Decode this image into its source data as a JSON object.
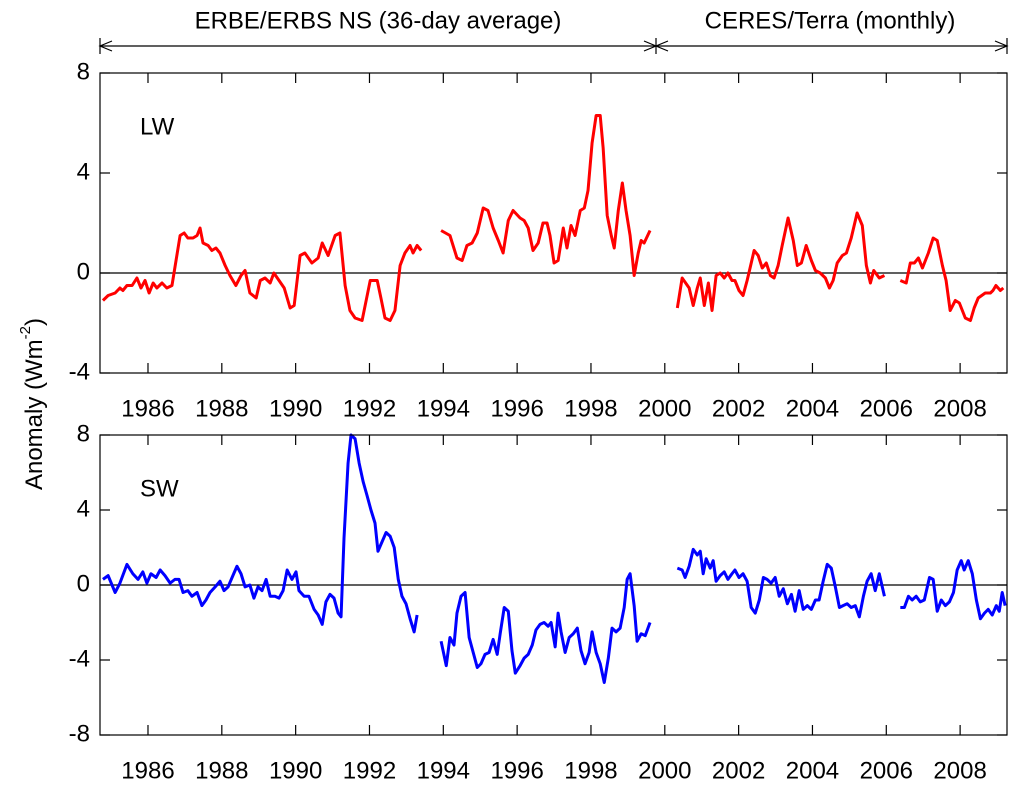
{
  "header": [
    "ERBE/ERBS NS (36-day average)",
    "CERES/Terra (monthly)"
  ],
  "ylabel": [
    "Anomaly (Wm",
    "-2",
    ")"
  ],
  "chart_data": [
    {
      "type": "line",
      "xlim": [
        1984.7,
        2009.27
      ],
      "ylim": [
        -4,
        8
      ],
      "xticks": [
        1986,
        1988,
        1990,
        1992,
        1994,
        1996,
        1998,
        2000,
        2002,
        2004,
        2006,
        2008
      ],
      "yticks": [
        -4,
        0,
        4,
        8
      ],
      "zero_line": true,
      "x": [
        1984.78,
        1984.92,
        1985.11,
        1985.24,
        1985.32,
        1985.43,
        1985.57,
        1985.7,
        1985.81,
        1985.92,
        1986.03,
        1986.14,
        1986.24,
        1986.38,
        1986.51,
        1986.65,
        1986.76,
        1986.87,
        1986.98,
        1987.08,
        1987.22,
        1987.33,
        1987.41,
        1987.49,
        1987.63,
        1987.73,
        1987.84,
        1987.95,
        1988.09,
        1988.22,
        1988.38,
        1988.52,
        1988.63,
        1988.76,
        1988.93,
        1989.04,
        1989.17,
        1989.31,
        1989.41,
        1989.55,
        1989.69,
        1989.85,
        1989.96,
        1990.12,
        1990.25,
        1990.44,
        1990.61,
        1990.72,
        1990.88,
        1991.07,
        1991.2,
        1991.34,
        1991.47,
        1991.61,
        1991.8,
        1992.02,
        1992.21,
        1992.31,
        1992.42,
        1992.56,
        1992.69,
        1992.83,
        1992.96,
        1993.1,
        1993.18,
        1993.29,
        1993.4,
        1993.67,
        1993.94,
        1994.18,
        1994.37,
        1994.51,
        1994.64,
        1994.78,
        1994.92,
        1995.08,
        1995.21,
        1995.35,
        1995.49,
        1995.62,
        1995.76,
        1995.89,
        1996.08,
        1996.19,
        1996.3,
        1996.43,
        1996.57,
        1996.7,
        1996.81,
        1996.89,
        1997.0,
        1997.11,
        1997.25,
        1997.35,
        1997.46,
        1997.57,
        1997.71,
        1997.82,
        1997.92,
        1998.03,
        1998.14,
        1998.25,
        1998.33,
        1998.44,
        1998.55,
        1998.63,
        1998.74,
        1998.85,
        1998.95,
        1999.06,
        1999.17,
        1999.28,
        1999.36,
        1999.44,
        1999.6,
        1999.97,
        2000.34,
        2000.47,
        2000.66,
        2000.77,
        2000.88,
        2000.96,
        2001.07,
        2001.18,
        2001.28,
        2001.39,
        2001.5,
        2001.61,
        2001.71,
        2001.82,
        2001.9,
        2002.01,
        2002.12,
        2002.23,
        2002.31,
        2002.42,
        2002.53,
        2002.64,
        2002.75,
        2002.86,
        2002.96,
        2003.07,
        2003.18,
        2003.34,
        2003.48,
        2003.59,
        2003.7,
        2003.83,
        2003.97,
        2004.08,
        2004.21,
        2004.35,
        2004.46,
        2004.56,
        2004.67,
        2004.81,
        2004.92,
        2005.05,
        2005.21,
        2005.35,
        2005.46,
        2005.57,
        2005.66,
        2005.81,
        2005.95,
        2006.16,
        2006.38,
        2006.54,
        2006.65,
        2006.76,
        2006.87,
        2006.98,
        2007.14,
        2007.27,
        2007.38,
        2007.52,
        2007.62,
        2007.73,
        2007.87,
        2007.98,
        2008.14,
        2008.28,
        2008.38,
        2008.49,
        2008.68,
        2008.82,
        2008.89,
        2008.97,
        2009.09,
        2009.17
      ],
      "series": [
        {
          "name": "LW",
          "color": "#ff0000",
          "values": [
            -1.1,
            -0.9,
            -0.8,
            -0.6,
            -0.7,
            -0.5,
            -0.5,
            -0.2,
            -0.6,
            -0.3,
            -0.8,
            -0.4,
            -0.6,
            -0.4,
            -0.6,
            -0.5,
            0.5,
            1.5,
            1.6,
            1.4,
            1.4,
            1.5,
            1.8,
            1.2,
            1.1,
            0.9,
            1.0,
            0.8,
            0.3,
            -0.1,
            -0.5,
            -0.1,
            0.1,
            -0.8,
            -1.0,
            -0.3,
            -0.2,
            -0.4,
            0.0,
            -0.3,
            -0.6,
            -1.4,
            -1.3,
            0.7,
            0.8,
            0.4,
            0.6,
            1.2,
            0.7,
            1.5,
            1.6,
            -0.5,
            -1.5,
            -1.8,
            -1.9,
            -0.3,
            -0.3,
            -1.0,
            -1.8,
            -1.9,
            -1.5,
            0.3,
            0.8,
            1.1,
            0.8,
            1.1,
            0.9,
            null,
            1.7,
            1.5,
            0.6,
            0.5,
            1.1,
            1.2,
            1.6,
            2.6,
            2.5,
            1.8,
            1.3,
            0.8,
            2.1,
            2.5,
            2.2,
            2.1,
            1.8,
            0.9,
            1.2,
            2.0,
            2.0,
            1.5,
            0.4,
            0.5,
            1.8,
            1.0,
            1.9,
            1.5,
            2.5,
            2.6,
            3.3,
            5.2,
            6.3,
            6.3,
            5.0,
            2.3,
            1.5,
            1.0,
            2.5,
            3.6,
            2.5,
            1.5,
            -0.1,
            0.8,
            1.3,
            1.2,
            1.7,
            null,
            -1.4,
            -0.2,
            -0.6,
            -1.3,
            -0.6,
            -0.2,
            -1.3,
            -0.4,
            -1.5,
            -0.1,
            0.0,
            -0.2,
            0.0,
            -0.3,
            -0.3,
            -0.7,
            -0.9,
            -0.3,
            0.2,
            0.9,
            0.7,
            0.2,
            0.4,
            -0.1,
            -0.2,
            0.3,
            1.1,
            2.2,
            1.3,
            0.3,
            0.4,
            1.1,
            0.5,
            0.1,
            0.0,
            -0.2,
            -0.6,
            -0.3,
            0.4,
            0.7,
            0.8,
            1.4,
            2.4,
            1.9,
            0.3,
            -0.4,
            0.1,
            -0.2,
            -0.1,
            null,
            -0.3,
            -0.4,
            0.4,
            0.4,
            0.6,
            0.2,
            0.8,
            1.4,
            1.3,
            0.3,
            -0.3,
            -1.5,
            -1.1,
            -1.2,
            -1.8,
            -1.9,
            -1.4,
            -1.0,
            -0.8,
            -0.8,
            -0.7,
            -0.5,
            -0.7,
            -0.6
          ]
        }
      ]
    },
    {
      "type": "line",
      "xlim": [
        1984.7,
        2009.27
      ],
      "ylim": [
        -8,
        8
      ],
      "xticks": [
        1986,
        1988,
        1990,
        1992,
        1994,
        1996,
        1998,
        2000,
        2002,
        2004,
        2006,
        2008
      ],
      "yticks": [
        -8,
        -4,
        0,
        4,
        8
      ],
      "zero_line": true,
      "x": [
        1984.78,
        1984.92,
        1985.11,
        1985.24,
        1985.43,
        1985.59,
        1985.73,
        1985.86,
        1985.97,
        1986.08,
        1986.22,
        1986.33,
        1986.46,
        1986.6,
        1986.73,
        1986.84,
        1986.95,
        1987.08,
        1987.19,
        1987.33,
        1987.46,
        1987.57,
        1987.68,
        1987.82,
        1987.95,
        1988.06,
        1988.17,
        1988.3,
        1988.41,
        1988.52,
        1988.63,
        1988.76,
        1988.87,
        1988.98,
        1989.09,
        1989.2,
        1989.31,
        1989.44,
        1989.55,
        1989.66,
        1989.77,
        1989.9,
        1990.01,
        1990.09,
        1990.23,
        1990.36,
        1990.5,
        1990.61,
        1990.72,
        1990.82,
        1990.93,
        1991.04,
        1991.15,
        1991.23,
        1991.31,
        1991.42,
        1991.5,
        1991.61,
        1991.72,
        1991.83,
        1991.93,
        1992.04,
        1992.15,
        1992.23,
        1992.34,
        1992.45,
        1992.56,
        1992.67,
        1992.78,
        1992.88,
        1992.99,
        1993.1,
        1993.21,
        1993.29,
        1993.62,
        1993.94,
        1994.08,
        1994.18,
        1994.29,
        1994.37,
        1994.48,
        1994.59,
        1994.7,
        1994.81,
        1994.92,
        1995.02,
        1995.13,
        1995.24,
        1995.35,
        1995.46,
        1995.54,
        1995.65,
        1995.76,
        1995.86,
        1995.95,
        1996.08,
        1996.19,
        1996.3,
        1996.41,
        1996.51,
        1996.62,
        1996.73,
        1996.84,
        1996.92,
        1997.03,
        1997.11,
        1997.19,
        1997.3,
        1997.41,
        1997.52,
        1997.63,
        1997.73,
        1997.84,
        1997.95,
        1998.03,
        1998.14,
        1998.25,
        1998.36,
        1998.47,
        1998.57,
        1998.68,
        1998.79,
        1998.9,
        1998.98,
        1999.06,
        1999.17,
        1999.25,
        1999.36,
        1999.47,
        1999.6,
        1999.97,
        2000.34,
        2000.47,
        2000.55,
        2000.66,
        2000.77,
        2000.88,
        2000.96,
        2001.04,
        2001.12,
        2001.23,
        2001.31,
        2001.39,
        2001.5,
        2001.61,
        2001.71,
        2001.82,
        2001.9,
        2002.01,
        2002.12,
        2002.23,
        2002.34,
        2002.45,
        2002.56,
        2002.67,
        2002.77,
        2002.88,
        2002.99,
        2003.1,
        2003.21,
        2003.32,
        2003.43,
        2003.53,
        2003.64,
        2003.75,
        2003.86,
        2003.97,
        2004.08,
        2004.18,
        2004.29,
        2004.4,
        2004.51,
        2004.62,
        2004.73,
        2004.83,
        2004.94,
        2005.05,
        2005.16,
        2005.27,
        2005.38,
        2005.48,
        2005.59,
        2005.7,
        2005.81,
        2005.95,
        2006.16,
        2006.38,
        2006.49,
        2006.6,
        2006.7,
        2006.81,
        2006.92,
        2007.03,
        2007.17,
        2007.27,
        2007.38,
        2007.49,
        2007.6,
        2007.71,
        2007.82,
        2007.92,
        2008.03,
        2008.11,
        2008.22,
        2008.33,
        2008.44,
        2008.55,
        2008.66,
        2008.76,
        2008.87,
        2008.98,
        2009.06,
        2009.14,
        2009.22
      ],
      "series": [
        {
          "name": "SW",
          "color": "#0000ff",
          "values": [
            0.3,
            0.5,
            -0.4,
            0.1,
            1.1,
            0.6,
            0.3,
            0.7,
            0.1,
            0.6,
            0.4,
            0.8,
            0.5,
            0.1,
            0.3,
            0.3,
            -0.4,
            -0.3,
            -0.6,
            -0.4,
            -1.1,
            -0.8,
            -0.4,
            -0.1,
            0.2,
            -0.3,
            -0.1,
            0.5,
            1.0,
            0.6,
            -0.1,
            0.0,
            -0.7,
            -0.1,
            -0.3,
            0.3,
            -0.6,
            -0.6,
            -0.7,
            -0.3,
            0.8,
            0.3,
            0.7,
            -0.3,
            -0.6,
            -0.6,
            -1.3,
            -1.6,
            -2.1,
            -0.9,
            -0.5,
            -0.7,
            -1.5,
            -1.7,
            2.5,
            6.5,
            8.0,
            7.8,
            6.5,
            5.5,
            4.8,
            4.0,
            3.3,
            1.8,
            2.3,
            2.8,
            2.6,
            2.0,
            0.3,
            -0.6,
            -1.0,
            -1.8,
            -2.5,
            -1.6,
            null,
            -3.0,
            -4.3,
            -2.8,
            -3.2,
            -1.5,
            -0.6,
            -0.4,
            -2.8,
            -3.6,
            -4.4,
            -4.2,
            -3.7,
            -3.6,
            -2.9,
            -3.7,
            -2.6,
            -1.2,
            -1.4,
            -3.5,
            -4.7,
            -4.3,
            -3.9,
            -3.7,
            -3.2,
            -2.4,
            -2.1,
            -2.0,
            -2.2,
            -2.0,
            -3.3,
            -1.5,
            -2.5,
            -3.6,
            -2.8,
            -2.6,
            -2.3,
            -3.5,
            -4.2,
            -3.6,
            -2.5,
            -3.6,
            -4.2,
            -5.2,
            -3.9,
            -2.3,
            -2.5,
            -2.3,
            -1.2,
            0.3,
            0.6,
            -1.1,
            -3.0,
            -2.6,
            -2.7,
            -2.0,
            null,
            0.9,
            0.8,
            0.4,
            1.0,
            1.9,
            1.6,
            1.8,
            0.6,
            1.4,
            0.9,
            1.3,
            0.2,
            0.5,
            0.7,
            0.3,
            0.6,
            0.8,
            0.4,
            0.6,
            0.2,
            -1.2,
            -1.5,
            -0.8,
            0.4,
            0.3,
            0.1,
            0.4,
            -0.6,
            -0.2,
            -1.0,
            -0.5,
            -1.4,
            -0.3,
            -1.3,
            -1.1,
            -1.3,
            -0.8,
            -0.8,
            0.2,
            1.1,
            0.9,
            -0.1,
            -1.2,
            -1.1,
            -1.0,
            -1.2,
            -1.1,
            -1.7,
            -0.6,
            0.2,
            0.6,
            -0.3,
            0.6,
            -0.6,
            null,
            -1.2,
            -1.2,
            -0.6,
            -0.8,
            -0.6,
            -0.9,
            -0.8,
            0.4,
            0.3,
            -1.4,
            -0.8,
            -1.1,
            -0.9,
            -0.4,
            0.8,
            1.3,
            0.8,
            1.3,
            0.6,
            -0.8,
            -1.8,
            -1.5,
            -1.3,
            -1.6,
            -1.1,
            -1.4,
            -0.4,
            -1.1
          ]
        }
      ]
    }
  ]
}
